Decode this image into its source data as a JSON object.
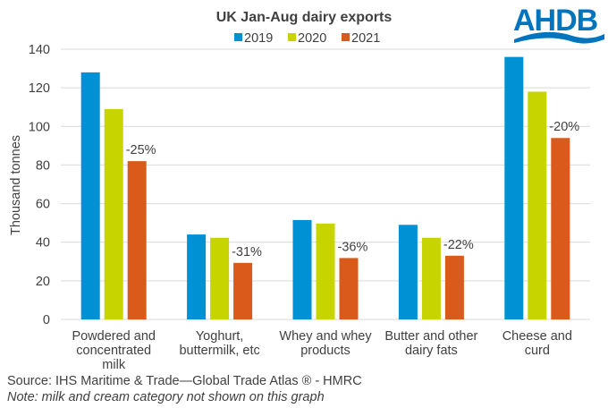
{
  "logo": {
    "text": "AHDB",
    "color": "#0075be"
  },
  "footer": {
    "source": "Source: IHS Maritime & Trade—Global Trade Atlas ®  - HMRC",
    "note": "Note: milk and cream category not shown  on this graph"
  },
  "chart_data": {
    "type": "bar",
    "title": "UK Jan-Aug dairy exports",
    "ylabel": "Thousand tonnes",
    "xlabel": "",
    "ylim": [
      0,
      140
    ],
    "yticks": [
      0,
      20,
      40,
      60,
      80,
      100,
      120,
      140
    ],
    "grid": true,
    "legend_position": "top",
    "categories": [
      [
        "Powdered and",
        "concentrated",
        "milk"
      ],
      [
        "Yoghurt,",
        "buttermilk, etc"
      ],
      [
        "Whey and whey",
        "products"
      ],
      [
        "Butter and other",
        "dairy fats"
      ],
      [
        "Cheese and",
        "curd"
      ]
    ],
    "series": [
      {
        "name": "2019",
        "color": "#0090d4",
        "values": [
          128,
          44,
          51.5,
          49,
          136
        ]
      },
      {
        "name": "2020",
        "color": "#c8d400",
        "values": [
          109,
          42.3,
          49.7,
          42.3,
          118
        ]
      },
      {
        "name": "2021",
        "color": "#d95a1a",
        "values": [
          82,
          29.3,
          31.8,
          33,
          94
        ]
      }
    ],
    "annotations": [
      "-25%",
      "-31%",
      "-36%",
      "-22%",
      "-20%"
    ]
  }
}
